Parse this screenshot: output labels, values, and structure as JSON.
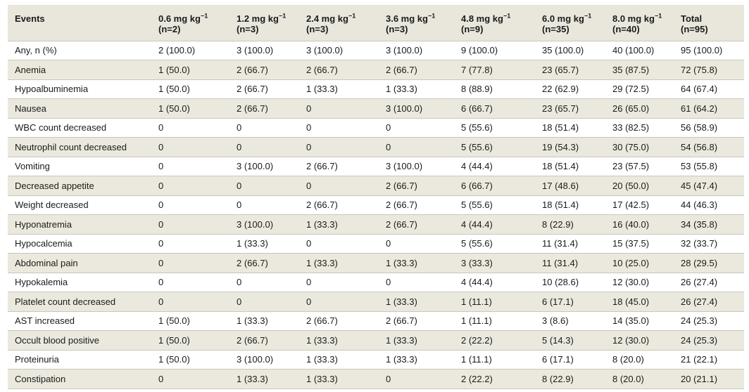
{
  "table": {
    "headers": [
      {
        "label": "Events",
        "n": ""
      },
      {
        "label": "0.6 mg kg",
        "sup": "−1",
        "n": "(n=2)"
      },
      {
        "label": "1.2 mg kg",
        "sup": "−1",
        "n": "(n=3)"
      },
      {
        "label": "2.4 mg kg",
        "sup": "−1",
        "n": "(n=3)"
      },
      {
        "label": "3.6 mg kg",
        "sup": "−1",
        "n": "(n=3)"
      },
      {
        "label": "4.8 mg kg",
        "sup": "−1",
        "n": "(n=9)"
      },
      {
        "label": "6.0 mg kg",
        "sup": "−1",
        "n": "(n=35)"
      },
      {
        "label": "8.0 mg kg",
        "sup": "−1",
        "n": "(n=40)"
      },
      {
        "label": "Total",
        "n": "(n=95)"
      }
    ],
    "rows": [
      [
        "Any, n (%)",
        "2 (100.0)",
        "3 (100.0)",
        "3 (100.0)",
        "3 (100.0)",
        "9 (100.0)",
        "35 (100.0)",
        "40 (100.0)",
        "95 (100.0)"
      ],
      [
        "Anemia",
        "1 (50.0)",
        "2 (66.7)",
        "2 (66.7)",
        "2 (66.7)",
        "7 (77.8)",
        "23 (65.7)",
        "35 (87.5)",
        "72 (75.8)"
      ],
      [
        "Hypoalbuminemia",
        "1 (50.0)",
        "2 (66.7)",
        "1 (33.3)",
        "1 (33.3)",
        "8 (88.9)",
        "22 (62.9)",
        "29 (72.5)",
        "64 (67.4)"
      ],
      [
        "Nausea",
        "1 (50.0)",
        "2 (66.7)",
        "0",
        "3 (100.0)",
        "6 (66.7)",
        "23 (65.7)",
        "26 (65.0)",
        "61 (64.2)"
      ],
      [
        "WBC count decreased",
        "0",
        "0",
        "0",
        "0",
        "5 (55.6)",
        "18 (51.4)",
        "33 (82.5)",
        "56 (58.9)"
      ],
      [
        "Neutrophil count decreased",
        "0",
        "0",
        "0",
        "0",
        "5 (55.6)",
        "19 (54.3)",
        "30 (75.0)",
        "54 (56.8)"
      ],
      [
        "Vomiting",
        "0",
        "3 (100.0)",
        "2 (66.7)",
        "3 (100.0)",
        "4 (44.4)",
        "18 (51.4)",
        "23 (57.5)",
        "53 (55.8)"
      ],
      [
        "Decreased appetite",
        "0",
        "0",
        "0",
        "2 (66.7)",
        "6 (66.7)",
        "17 (48.6)",
        "20 (50.0)",
        "45 (47.4)"
      ],
      [
        "Weight decreased",
        "0",
        "0",
        "2 (66.7)",
        "2 (66.7)",
        "5 (55.6)",
        "18 (51.4)",
        "17 (42.5)",
        "44 (46.3)"
      ],
      [
        "Hyponatremia",
        "0",
        "3 (100.0)",
        "1 (33.3)",
        "2 (66.7)",
        "4 (44.4)",
        "8 (22.9)",
        "16 (40.0)",
        "34 (35.8)"
      ],
      [
        "Hypocalcemia",
        "0",
        "1 (33.3)",
        "0",
        "0",
        "5 (55.6)",
        "11 (31.4)",
        "15 (37.5)",
        "32 (33.7)"
      ],
      [
        "Abdominal pain",
        "0",
        "2 (66.7)",
        "1 (33.3)",
        "1 (33.3)",
        "3 (33.3)",
        "11 (31.4)",
        "10 (25.0)",
        "28 (29.5)"
      ],
      [
        "Hypokalemia",
        "0",
        "0",
        "0",
        "0",
        "4 (44.4)",
        "10 (28.6)",
        "12 (30.0)",
        "26 (27.4)"
      ],
      [
        "Platelet count decreased",
        "0",
        "0",
        "0",
        "1 (33.3)",
        "1 (11.1)",
        "6 (17.1)",
        "18 (45.0)",
        "26 (27.4)"
      ],
      [
        "AST increased",
        "1 (50.0)",
        "1 (33.3)",
        "2 (66.7)",
        "2 (66.7)",
        "1 (11.1)",
        "3 (8.6)",
        "14 (35.0)",
        "24 (25.3)"
      ],
      [
        "Occult blood positive",
        "1 (50.0)",
        "2 (66.7)",
        "1 (33.3)",
        "1 (33.3)",
        "2 (22.2)",
        "5 (14.3)",
        "12 (30.0)",
        "24 (25.3)"
      ],
      [
        "Proteinuria",
        "1 (50.0)",
        "3 (100.0)",
        "1 (33.3)",
        "1 (33.3)",
        "1 (11.1)",
        "6 (17.1)",
        "8 (20.0)",
        "21 (22.1)"
      ],
      [
        "Constipation",
        "0",
        "1 (33.3)",
        "1 (33.3)",
        "0",
        "2 (22.2)",
        "8 (22.9)",
        "8 (20.0)",
        "20 (21.1)"
      ]
    ]
  }
}
